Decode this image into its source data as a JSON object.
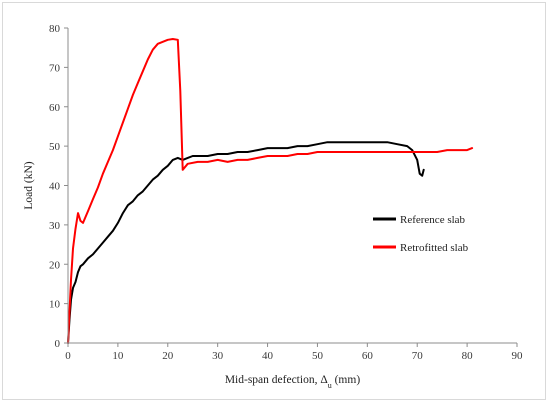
{
  "chart_data": {
    "type": "line",
    "title": "",
    "xlabel": "Mid-span defection, Δ",
    "xlabel_sub": "u",
    "xlabel_unit": " (mm)",
    "ylabel": "Load (kN)",
    "xlim": [
      0,
      90
    ],
    "ylim": [
      0,
      80
    ],
    "xticks": [
      "0",
      "10",
      "20",
      "30",
      "40",
      "50",
      "60",
      "70",
      "80",
      "90"
    ],
    "yticks": [
      "0",
      "10",
      "20",
      "30",
      "40",
      "50",
      "60",
      "70",
      "80"
    ],
    "grid": false,
    "legend_position": "right-middle",
    "series": [
      {
        "name": "Reference slab",
        "color": "#000000",
        "points": [
          [
            0,
            0
          ],
          [
            0.3,
            6
          ],
          [
            0.6,
            11
          ],
          [
            1,
            14
          ],
          [
            1.5,
            15.5
          ],
          [
            2,
            18
          ],
          [
            2.5,
            19.5
          ],
          [
            3,
            20
          ],
          [
            4,
            21.5
          ],
          [
            5,
            22.5
          ],
          [
            6,
            24
          ],
          [
            7,
            25.5
          ],
          [
            8,
            27
          ],
          [
            9,
            28.5
          ],
          [
            10,
            30.5
          ],
          [
            11,
            33
          ],
          [
            12,
            35
          ],
          [
            13,
            36
          ],
          [
            14,
            37.5
          ],
          [
            15,
            38.5
          ],
          [
            16,
            40
          ],
          [
            17,
            41.5
          ],
          [
            18,
            42.5
          ],
          [
            19,
            44
          ],
          [
            20,
            45
          ],
          [
            21,
            46.5
          ],
          [
            22,
            47
          ],
          [
            23,
            46.5
          ],
          [
            24,
            47
          ],
          [
            25,
            47.5
          ],
          [
            26,
            47.5
          ],
          [
            28,
            47.5
          ],
          [
            30,
            48
          ],
          [
            32,
            48
          ],
          [
            34,
            48.5
          ],
          [
            36,
            48.5
          ],
          [
            38,
            49
          ],
          [
            40,
            49.5
          ],
          [
            42,
            49.5
          ],
          [
            44,
            49.5
          ],
          [
            46,
            50
          ],
          [
            48,
            50
          ],
          [
            50,
            50.5
          ],
          [
            52,
            51
          ],
          [
            54,
            51
          ],
          [
            56,
            51
          ],
          [
            58,
            51
          ],
          [
            60,
            51
          ],
          [
            62,
            51
          ],
          [
            64,
            51
          ],
          [
            66,
            50.5
          ],
          [
            68,
            50
          ],
          [
            69,
            49
          ],
          [
            70,
            46.5
          ],
          [
            70.5,
            43
          ],
          [
            71,
            42.5
          ],
          [
            71.3,
            44
          ]
        ]
      },
      {
        "name": "Retrofitted slab",
        "color": "#ff0000",
        "points": [
          [
            0,
            0
          ],
          [
            0.3,
            8
          ],
          [
            0.6,
            16
          ],
          [
            1,
            24
          ],
          [
            1.5,
            29
          ],
          [
            2,
            33
          ],
          [
            2.5,
            31
          ],
          [
            3,
            30.5
          ],
          [
            4,
            33.5
          ],
          [
            5,
            36.5
          ],
          [
            6,
            39.5
          ],
          [
            7,
            43
          ],
          [
            8,
            46
          ],
          [
            9,
            49
          ],
          [
            10,
            52.5
          ],
          [
            11,
            56
          ],
          [
            12,
            59.5
          ],
          [
            13,
            63
          ],
          [
            14,
            66
          ],
          [
            15,
            69
          ],
          [
            16,
            72
          ],
          [
            17,
            74.5
          ],
          [
            18,
            76
          ],
          [
            19,
            76.5
          ],
          [
            20,
            77
          ],
          [
            21,
            77.2
          ],
          [
            22,
            77
          ],
          [
            22.5,
            64
          ],
          [
            23,
            44
          ],
          [
            24,
            45.5
          ],
          [
            26,
            46
          ],
          [
            28,
            46
          ],
          [
            30,
            46.5
          ],
          [
            32,
            46
          ],
          [
            34,
            46.5
          ],
          [
            36,
            46.5
          ],
          [
            38,
            47
          ],
          [
            40,
            47.5
          ],
          [
            42,
            47.5
          ],
          [
            44,
            47.5
          ],
          [
            46,
            48
          ],
          [
            48,
            48
          ],
          [
            50,
            48.5
          ],
          [
            52,
            48.5
          ],
          [
            54,
            48.5
          ],
          [
            56,
            48.5
          ],
          [
            58,
            48.5
          ],
          [
            60,
            48.5
          ],
          [
            62,
            48.5
          ],
          [
            64,
            48.5
          ],
          [
            66,
            48.5
          ],
          [
            68,
            48.5
          ],
          [
            70,
            48.5
          ],
          [
            72,
            48.5
          ],
          [
            74,
            48.5
          ],
          [
            76,
            49
          ],
          [
            78,
            49
          ],
          [
            80,
            49
          ],
          [
            81,
            49.5
          ]
        ]
      }
    ]
  }
}
